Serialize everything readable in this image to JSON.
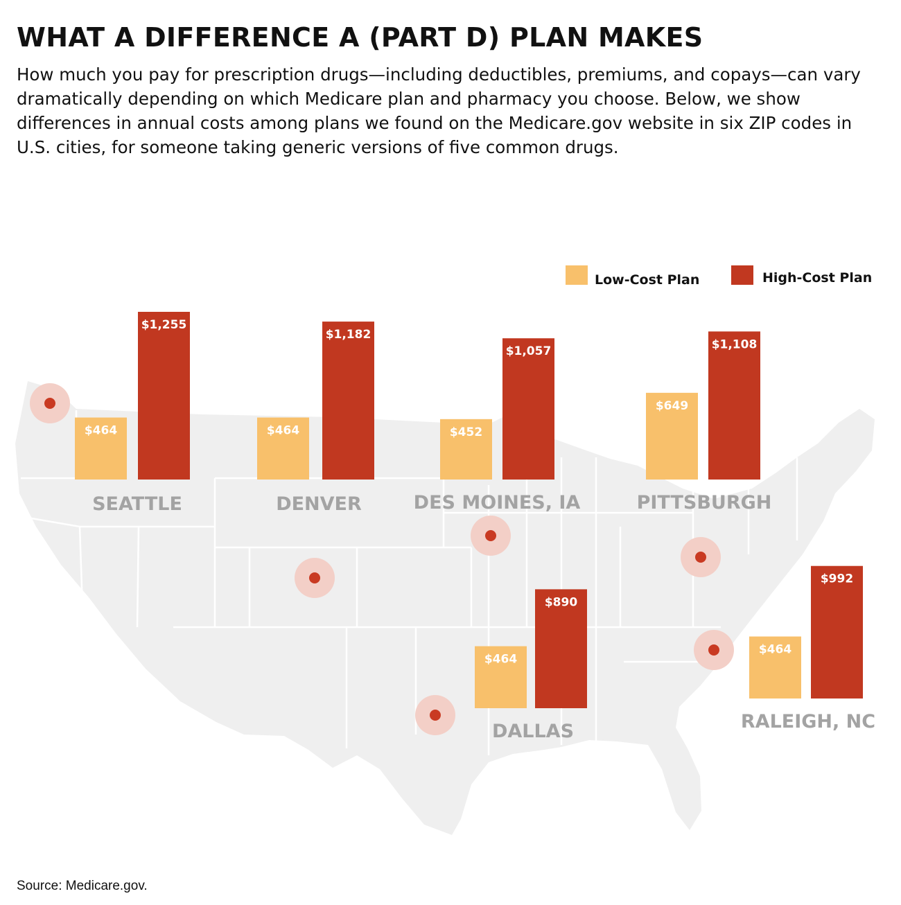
{
  "title": "WHAT A DIFFERENCE A (PART D) PLAN MAKES",
  "subtitle": "How much you pay for prescription drugs—including deductibles, premiums, and copays—can vary dramatically depending on which Medicare plan and pharmacy you choose. Below, we show differences in annual costs among plans we found on the Medicare.gov website in six ZIP codes in U.S. cities, for someone taking generic versions of five common drugs.",
  "source": "Source: Medicare.gov.",
  "colors": {
    "low_cost": "#f8c06b",
    "high_cost": "#c13820",
    "marker": "#c93a22",
    "marker_halo": "#f3cfc7",
    "map_fill": "#efefef",
    "map_border": "#ffffff",
    "city_label": "#a3a3a3"
  },
  "chart_data": {
    "type": "bar",
    "legend": {
      "position": "top-right",
      "entries": [
        "Low-Cost Plan",
        "High-Cost Plan"
      ]
    },
    "series": [
      {
        "name": "Low-Cost Plan",
        "values": [
          464,
          464,
          452,
          649,
          464,
          464
        ]
      },
      {
        "name": "High-Cost Plan",
        "values": [
          1255,
          1182,
          1057,
          1108,
          890,
          992
        ]
      }
    ],
    "categories": [
      "SEATTLE",
      "DENVER",
      "DES MOINES, IA",
      "PITTSBURGH",
      "DALLAS",
      "RALEIGH, NC"
    ],
    "data_labels": {
      "low": [
        "$464",
        "$464",
        "$452",
        "$649",
        "$464",
        "$464"
      ],
      "high": [
        "$1,255",
        "$1,182",
        "$1,057",
        "$1,108",
        "$890",
        "$992"
      ]
    },
    "ylim": [
      0,
      1255
    ],
    "grid": false,
    "background": "map of the United States with city location markers"
  }
}
